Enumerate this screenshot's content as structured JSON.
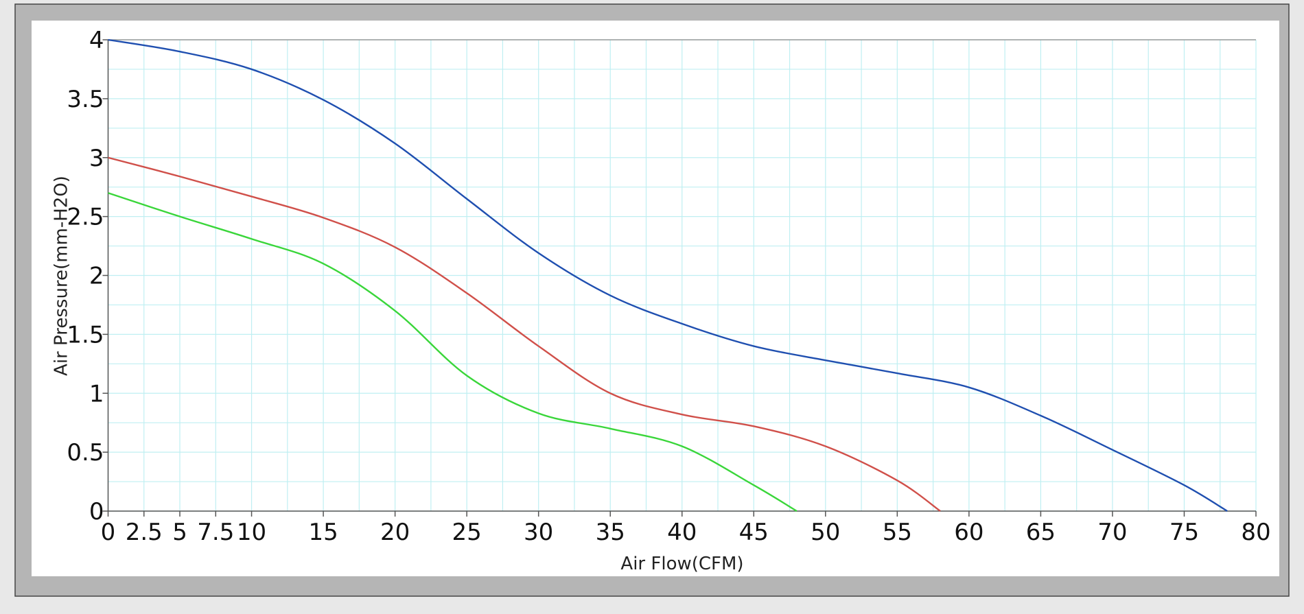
{
  "chart_data": {
    "type": "line",
    "x_label": "Air Flow(CFM)",
    "y_label": "Air Pressure(mm-H2O)",
    "xlim": [
      0,
      80
    ],
    "ylim": [
      0,
      4
    ],
    "xticks": [
      0,
      2.5,
      5,
      7.5,
      10,
      15,
      20,
      25,
      30,
      35,
      40,
      45,
      50,
      55,
      60,
      65,
      70,
      75,
      80
    ],
    "yticks": [
      0,
      0.5,
      1,
      1.5,
      2,
      2.5,
      3,
      3.5,
      4
    ],
    "xgrid": [
      0,
      2.5,
      5,
      7.5,
      10,
      12.5,
      15,
      17.5,
      20,
      22.5,
      25,
      27.5,
      30,
      32.5,
      35,
      37.5,
      40,
      42.5,
      45,
      47.5,
      50,
      52.5,
      55,
      57.5,
      60,
      62.5,
      65,
      67.5,
      70,
      72.5,
      75,
      77.5,
      80
    ],
    "ygrid": [
      0,
      0.25,
      0.5,
      0.75,
      1,
      1.25,
      1.5,
      1.75,
      2,
      2.25,
      2.5,
      2.75,
      3,
      3.25,
      3.5,
      3.75,
      4
    ],
    "grid": true,
    "series": [
      {
        "color": "#1f4fb0",
        "x": [
          0,
          5,
          10,
          15,
          20,
          25,
          30,
          35,
          40,
          45,
          50,
          55,
          60,
          65,
          70,
          75,
          78
        ],
        "values": [
          4,
          3.9,
          3.75,
          3.49,
          3.12,
          2.65,
          2.19,
          1.83,
          1.59,
          1.4,
          1.28,
          1.17,
          1.05,
          0.81,
          0.52,
          0.22,
          0
        ]
      },
      {
        "color": "#d0504a",
        "x": [
          0,
          5,
          10,
          15,
          20,
          25,
          30,
          35,
          40,
          45,
          50,
          55,
          58
        ],
        "values": [
          3,
          2.84,
          2.67,
          2.49,
          2.24,
          1.85,
          1.4,
          1.0,
          0.82,
          0.72,
          0.55,
          0.26,
          0
        ]
      },
      {
        "color": "#3ad63a",
        "x": [
          0,
          5,
          10,
          15,
          20,
          25,
          30,
          35,
          40,
          45,
          48
        ],
        "values": [
          2.7,
          2.5,
          2.31,
          2.1,
          1.7,
          1.15,
          0.83,
          0.7,
          0.55,
          0.22,
          0
        ]
      }
    ]
  }
}
